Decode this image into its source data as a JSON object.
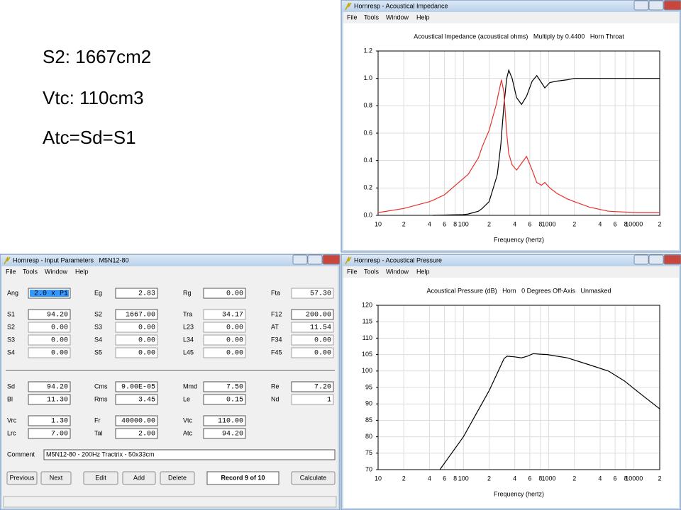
{
  "slide_notes": [
    "S2: 1667cm2",
    "Vtc: 110cm3",
    "Atc=Sd=S1"
  ],
  "windows": [
    {
      "title": "Hornresp - Acoustical Impedance",
      "menu": [
        "File",
        "Tools",
        "Window",
        "Help"
      ]
    },
    {
      "title": "Hornresp - Input Parameters   M5N12-80",
      "menu": [
        "File",
        "Tools",
        "Window",
        "Help"
      ]
    },
    {
      "title": "Hornresp - Acoustical Pressure",
      "menu": [
        "File",
        "Tools",
        "Window",
        "Help"
      ]
    }
  ],
  "chart_data": [
    {
      "type": "line",
      "title": "Acoustical Impedance (acoustical ohms)   Multiply by 0.4400   Horn Throat",
      "x_label": "Frequency (hertz)",
      "xscale": "log",
      "grid": true,
      "x": [
        10,
        20,
        40,
        44,
        60,
        100,
        114,
        150,
        166,
        200,
        245,
        250,
        275,
        279,
        298,
        322,
        340,
        372,
        420,
        480,
        550,
        640,
        725,
        820,
        900,
        1030,
        1250,
        1650,
        2000,
        3000,
        5000,
        10000,
        20000
      ],
      "series": [
        {
          "color": "#000000",
          "values": [
            null,
            null,
            null,
            0,
            0.002,
            0.005,
            0.01,
            0.03,
            0.05,
            0.1,
            0.28,
            0.3,
            0.52,
            0.58,
            0.8,
            1.0,
            1.06,
            1.0,
            0.86,
            0.81,
            0.87,
            0.98,
            1.02,
            0.97,
            0.93,
            0.97,
            0.98,
            0.99,
            1.0,
            1.0,
            1.0,
            1.0,
            1.0
          ]
        },
        {
          "color": "#e8302a",
          "values": [
            0.02,
            0.05,
            0.1,
            0.11,
            0.15,
            0.27,
            0.3,
            0.42,
            0.5,
            0.62,
            0.82,
            0.85,
            0.97,
            0.99,
            0.9,
            0.6,
            0.45,
            0.37,
            0.33,
            0.38,
            0.43,
            0.33,
            0.24,
            0.22,
            0.24,
            0.2,
            0.16,
            0.12,
            0.1,
            0.06,
            0.03,
            0.02,
            0.02
          ]
        }
      ],
      "xlim": [
        10,
        20000
      ],
      "xticks": [
        10,
        {
          "value": 20,
          "label": "2"
        },
        {
          "value": 40,
          "label": "4"
        },
        {
          "value": 60,
          "label": "6"
        },
        {
          "value": 80,
          "label": "8"
        },
        100,
        {
          "value": 200,
          "label": "2"
        },
        {
          "value": 400,
          "label": "4"
        },
        {
          "value": 600,
          "label": "6"
        },
        {
          "value": 800,
          "label": "8"
        },
        1000,
        {
          "value": 2000,
          "label": "2"
        },
        {
          "value": 4000,
          "label": "4"
        },
        {
          "value": 6000,
          "label": "6"
        },
        {
          "value": 8000,
          "label": "8"
        },
        10000,
        {
          "value": 20000,
          "label": "2"
        }
      ],
      "ylim": [
        0,
        1.2
      ],
      "yticks": [
        {
          "value": 0,
          "label": "0.0"
        },
        0.2,
        0.4,
        0.6,
        0.8,
        {
          "value": 1,
          "label": "1.0"
        },
        1.2
      ]
    },
    {
      "type": "line",
      "title": "Acoustical Pressure (dB)   Horn   0 Degrees Off-Axis   Unmasked",
      "x_label": "Frequency (hertz)",
      "xscale": "log",
      "grid": true,
      "x": [
        53,
        100,
        200,
        300,
        325,
        400,
        480,
        560,
        660,
        800,
        970,
        1200,
        1650,
        2900,
        5000,
        7700,
        12000,
        20000
      ],
      "series": [
        {
          "color": "#000000",
          "values": [
            70,
            80,
            94,
            103.8,
            104.5,
            104.3,
            104,
            104.5,
            105.3,
            105.1,
            105,
            104.6,
            104,
            102,
            100,
            97,
            93,
            88.5
          ]
        }
      ],
      "xlim": [
        10,
        20000
      ],
      "xticks": [
        10,
        {
          "value": 20,
          "label": "2"
        },
        {
          "value": 40,
          "label": "4"
        },
        {
          "value": 60,
          "label": "6"
        },
        {
          "value": 80,
          "label": "8"
        },
        100,
        {
          "value": 200,
          "label": "2"
        },
        {
          "value": 400,
          "label": "4"
        },
        {
          "value": 600,
          "label": "6"
        },
        {
          "value": 800,
          "label": "8"
        },
        1000,
        {
          "value": 2000,
          "label": "2"
        },
        {
          "value": 4000,
          "label": "4"
        },
        {
          "value": 6000,
          "label": "6"
        },
        {
          "value": 8000,
          "label": "8"
        },
        10000,
        {
          "value": 20000,
          "label": "2"
        }
      ],
      "ylim": [
        70,
        120
      ],
      "yticks": [
        70,
        75,
        80,
        85,
        90,
        95,
        100,
        105,
        110,
        115,
        120
      ]
    }
  ],
  "input_parameters": {
    "rows": [
      [
        [
          "Ang",
          "2.0 x Pi"
        ],
        [
          "Eg",
          "2.83"
        ],
        [
          "Rg",
          "0.00"
        ],
        [
          "Fta",
          "57.30"
        ]
      ],
      [
        [
          "S1",
          "94.20"
        ],
        [
          "S2",
          "1667.00"
        ],
        [
          "Tra",
          "34.17"
        ],
        [
          "F12",
          "200.00"
        ]
      ],
      [
        [
          "S2",
          "0.00"
        ],
        [
          "S3",
          "0.00"
        ],
        [
          "L23",
          "0.00"
        ],
        [
          "AT",
          "11.54"
        ]
      ],
      [
        [
          "S3",
          "0.00"
        ],
        [
          "S4",
          "0.00"
        ],
        [
          "L34",
          "0.00"
        ],
        [
          "F34",
          "0.00"
        ]
      ],
      [
        [
          "S4",
          "0.00"
        ],
        [
          "S5",
          "0.00"
        ],
        [
          "L45",
          "0.00"
        ],
        [
          "F45",
          "0.00"
        ]
      ],
      [
        [
          "Sd",
          "94.20"
        ],
        [
          "Cms",
          "9.00E-05"
        ],
        [
          "Mmd",
          "7.50"
        ],
        [
          "Re",
          "7.20"
        ]
      ],
      [
        [
          "Bl",
          "11.30"
        ],
        [
          "Rms",
          "3.45"
        ],
        [
          "Le",
          "0.15"
        ],
        [
          "Nd",
          "1"
        ]
      ],
      [
        [
          "Vrc",
          "1.30"
        ],
        [
          "Fr",
          "40000.00"
        ],
        [
          "Vtc",
          "110.00"
        ]
      ],
      [
        [
          "Lrc",
          "7.00"
        ],
        [
          "Tal",
          "2.00"
        ],
        [
          "Atc",
          "94.20"
        ]
      ]
    ],
    "comment_label": "Comment",
    "comment": "M5N12-80 - 200Hz Tractrix - 50x33cm",
    "buttons": [
      "Previous",
      "Next",
      "Edit",
      "Add",
      "Delete",
      "Record 9 of 10",
      "Calculate"
    ]
  }
}
